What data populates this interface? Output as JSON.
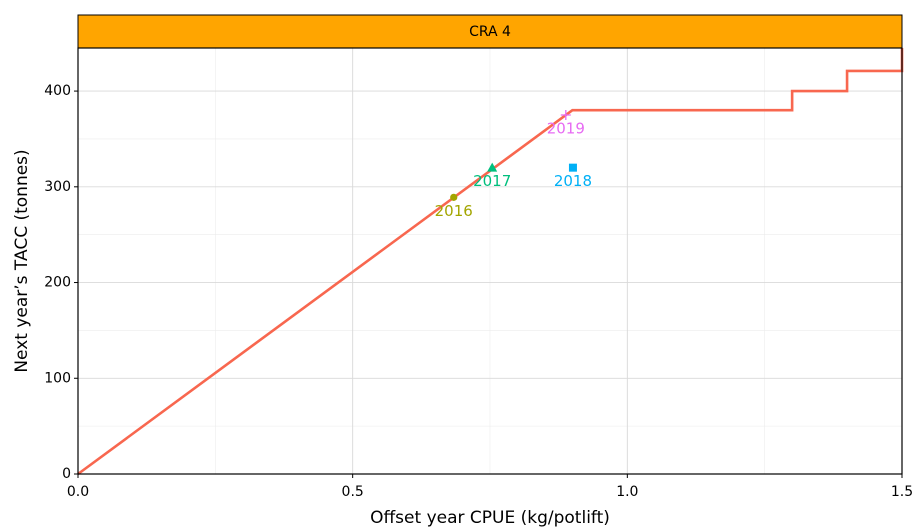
{
  "chart_data": {
    "type": "line",
    "facet": "CRA 4",
    "x_label": "Offset year CPUE (kg/potlift)",
    "y_label": "Next year’s TACC (tonnes)",
    "xlim": [
      0,
      1.5
    ],
    "ylim": [
      0,
      445
    ],
    "xticks": [
      {
        "value": 0,
        "label": "0.0"
      },
      0.5,
      {
        "value": 1,
        "label": "1.0"
      },
      1.5
    ],
    "yticks": [
      0,
      100,
      200,
      300,
      400
    ],
    "x_minor_grid": [
      0.25,
      0.75,
      1.25
    ],
    "y_minor_grid": [
      50,
      150,
      250,
      350
    ],
    "grid": true,
    "line": {
      "color": "#f8674f",
      "x": [
        0,
        0.9,
        1.3,
        1.3,
        1.4,
        1.4,
        1.5,
        1.5
      ],
      "y": [
        0,
        380,
        380,
        400,
        400,
        421,
        421,
        445
      ]
    },
    "points": [
      {
        "label": "2016",
        "x": 0.684,
        "y": 289,
        "color": "#a3a500",
        "shape": "circle"
      },
      {
        "label": "2017",
        "x": 0.754,
        "y": 320,
        "color": "#00bf7d",
        "shape": "triangle"
      },
      {
        "label": "2018",
        "x": 0.901,
        "y": 320,
        "color": "#00b0f6",
        "shape": "square"
      },
      {
        "label": "2019",
        "x": 0.888,
        "y": 375,
        "color": "#e76bf3",
        "shape": "plus"
      }
    ]
  }
}
